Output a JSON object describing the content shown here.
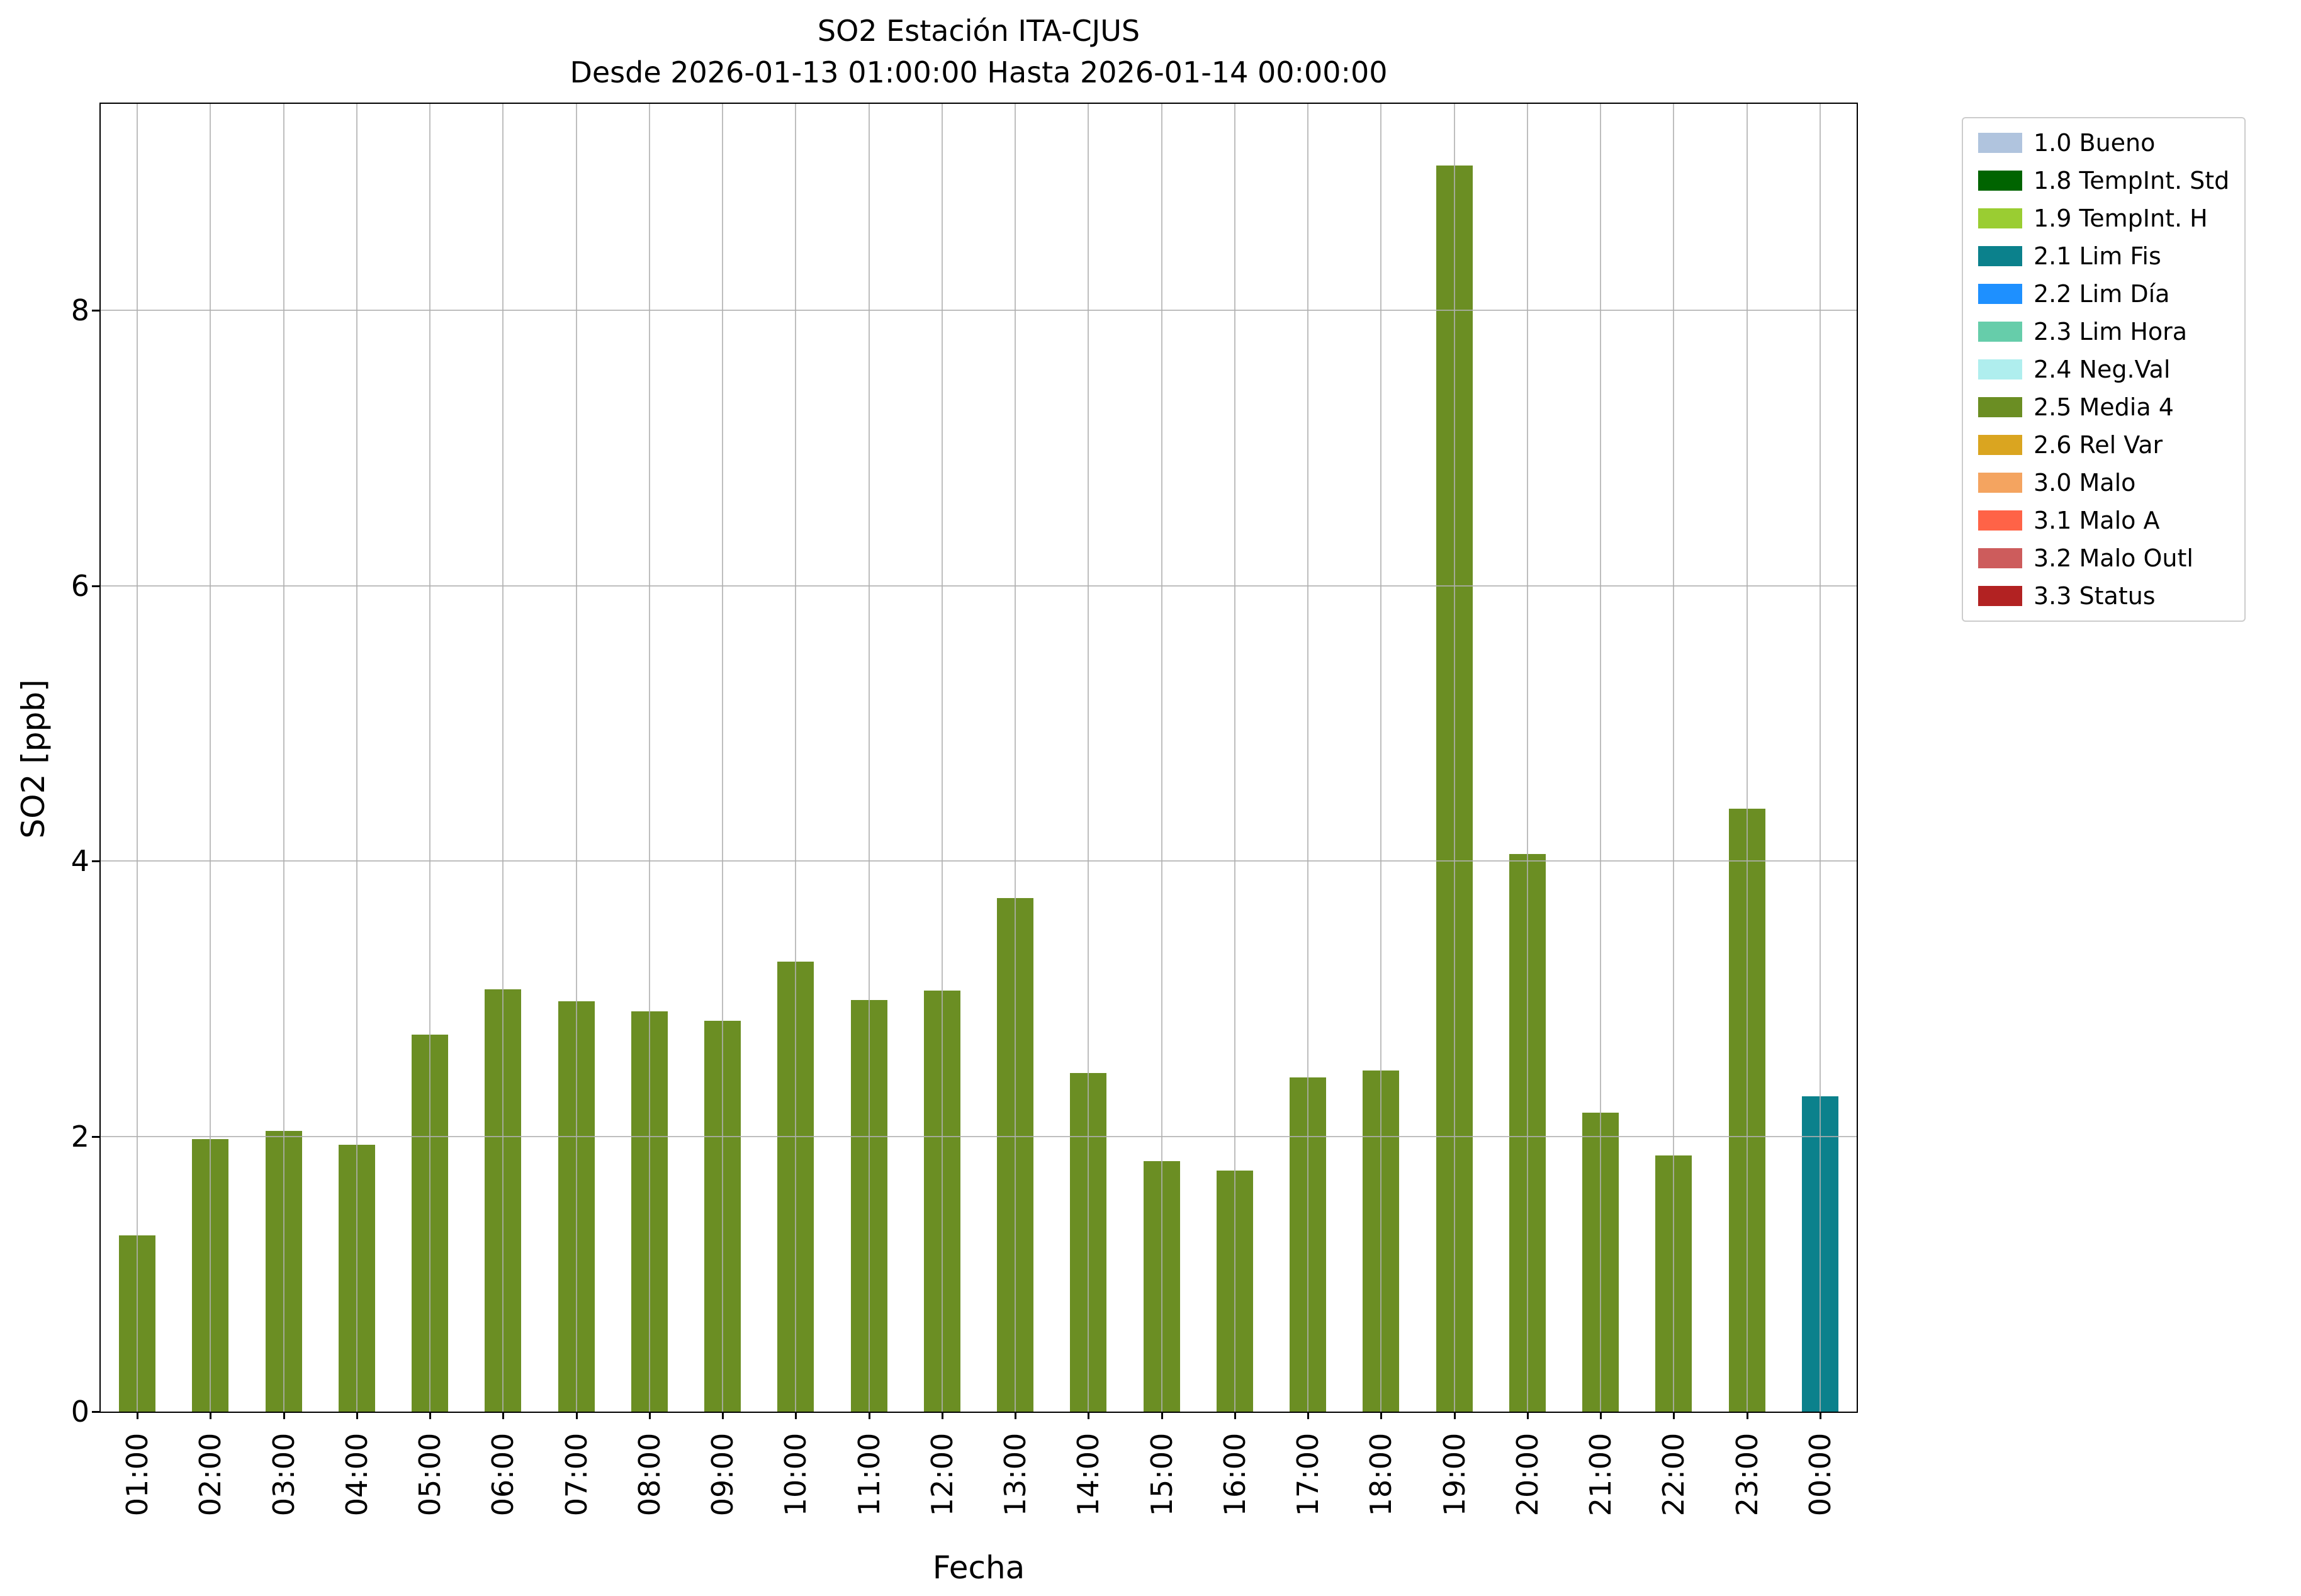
{
  "chart_data": {
    "type": "bar",
    "title": "SO2 Estación ITA-CJUS",
    "subtitle": "Desde 2026-01-13 01:00:00 Hasta 2026-01-14 00:00:00",
    "xlabel": "Fecha",
    "ylabel": "SO2 [ppb]",
    "ylim": [
      0,
      9.5
    ],
    "yticks": [
      0,
      2,
      4,
      6,
      8
    ],
    "grid": true,
    "legend_position": "outside-upper-right",
    "categories": [
      "01:00",
      "02:00",
      "03:00",
      "04:00",
      "05:00",
      "06:00",
      "07:00",
      "08:00",
      "09:00",
      "10:00",
      "11:00",
      "12:00",
      "13:00",
      "14:00",
      "15:00",
      "16:00",
      "17:00",
      "18:00",
      "19:00",
      "20:00",
      "21:00",
      "22:00",
      "23:00",
      "00:00"
    ],
    "values": [
      1.28,
      1.98,
      2.04,
      1.94,
      2.74,
      3.07,
      2.98,
      2.91,
      2.84,
      3.27,
      2.99,
      3.06,
      3.73,
      2.46,
      1.82,
      1.75,
      2.43,
      2.48,
      9.05,
      4.05,
      2.17,
      1.86,
      4.38,
      2.29
    ],
    "bar_categories": [
      "2.5 Media 4",
      "2.5 Media 4",
      "2.5 Media 4",
      "2.5 Media 4",
      "2.5 Media 4",
      "2.5 Media 4",
      "2.5 Media 4",
      "2.5 Media 4",
      "2.5 Media 4",
      "2.5 Media 4",
      "2.5 Media 4",
      "2.5 Media 4",
      "2.5 Media 4",
      "2.5 Media 4",
      "2.5 Media 4",
      "2.5 Media 4",
      "2.5 Media 4",
      "2.5 Media 4",
      "2.5 Media 4",
      "2.5 Media 4",
      "2.5 Media 4",
      "2.5 Media 4",
      "2.5 Media 4",
      "2.1 Lim Fis"
    ],
    "palette": {
      "1.0 Bueno": "#b0c4de",
      "1.8 TempInt. Std": "#006400",
      "1.9 TempInt. H": "#9acd32",
      "2.1 Lim Fis": "#0b818c",
      "2.2 Lim Día": "#1e90ff",
      "2.3 Lim Hora": "#66cdaa",
      "2.4 Neg.Val": "#afeeee",
      "2.5 Media 4": "#6b8e23",
      "2.6 Rel Var": "#daa520",
      "3.0 Malo": "#f4a460",
      "3.1 Malo A": "#ff6347",
      "3.2 Malo Outl": "#cd5c5c",
      "3.3 Status": "#b22222"
    },
    "legend": [
      {
        "label": "1.0 Bueno",
        "color": "#b0c4de"
      },
      {
        "label": "1.8 TempInt. Std",
        "color": "#006400"
      },
      {
        "label": "1.9 TempInt. H",
        "color": "#9acd32"
      },
      {
        "label": "2.1 Lim Fis",
        "color": "#0b818c"
      },
      {
        "label": "2.2 Lim Día",
        "color": "#1e90ff"
      },
      {
        "label": "2.3 Lim Hora",
        "color": "#66cdaa"
      },
      {
        "label": "2.4 Neg.Val",
        "color": "#afeeee"
      },
      {
        "label": "2.5 Media 4",
        "color": "#6b8e23"
      },
      {
        "label": "2.6 Rel Var",
        "color": "#daa520"
      },
      {
        "label": "3.0 Malo",
        "color": "#f4a460"
      },
      {
        "label": "3.1 Malo A",
        "color": "#ff6347"
      },
      {
        "label": "3.2 Malo Outl",
        "color": "#cd5c5c"
      },
      {
        "label": "3.3 Status",
        "color": "#b22222"
      }
    ]
  }
}
